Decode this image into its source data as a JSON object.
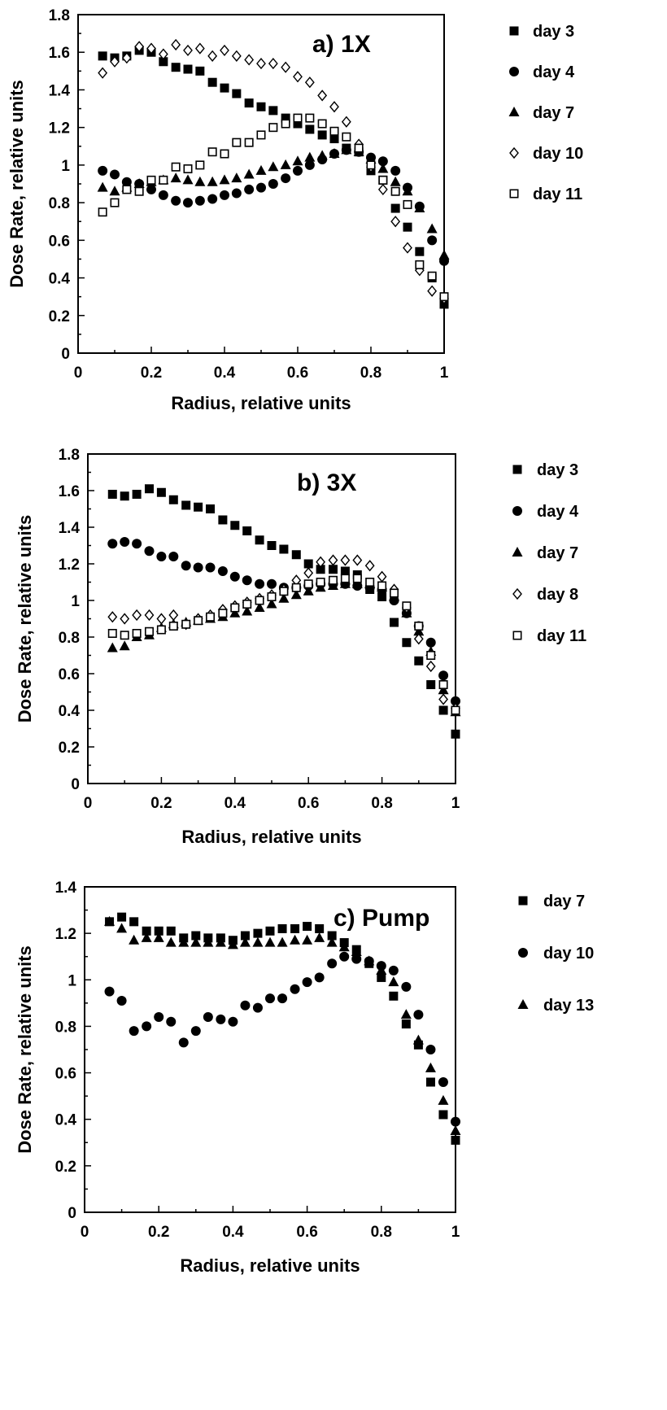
{
  "chart_data": [
    {
      "type": "scatter",
      "title": "a) 1X",
      "xlabel": "Radius, relative units",
      "ylabel": "Dose Rate, relative units",
      "xlim": [
        0,
        1
      ],
      "ylim": [
        0,
        1.8
      ],
      "xticks": [
        "0",
        "0.2",
        "0.4",
        "0.6",
        "0.8",
        "1"
      ],
      "yticks": [
        "0",
        "0.2",
        "0.4",
        "0.6",
        "0.8",
        "1",
        "1.2",
        "1.4",
        "1.6",
        "1.8"
      ],
      "legend_position": "right",
      "series": [
        {
          "name": "day 3",
          "marker": "square-filled",
          "x": [
            0.067,
            0.1,
            0.133,
            0.167,
            0.2,
            0.233,
            0.267,
            0.3,
            0.333,
            0.367,
            0.4,
            0.433,
            0.467,
            0.5,
            0.533,
            0.567,
            0.6,
            0.633,
            0.667,
            0.7,
            0.733,
            0.767,
            0.8,
            0.833,
            0.867,
            0.9,
            0.933,
            0.967,
            1.0
          ],
          "y": [
            1.58,
            1.57,
            1.58,
            1.61,
            1.6,
            1.55,
            1.52,
            1.51,
            1.5,
            1.44,
            1.41,
            1.38,
            1.33,
            1.31,
            1.29,
            1.25,
            1.22,
            1.19,
            1.16,
            1.14,
            1.09,
            1.07,
            0.97,
            0.92,
            0.77,
            0.67,
            0.54,
            0.4,
            0.26
          ]
        },
        {
          "name": "day 4",
          "marker": "circle-filled",
          "x": [
            0.067,
            0.1,
            0.133,
            0.167,
            0.2,
            0.233,
            0.267,
            0.3,
            0.333,
            0.367,
            0.4,
            0.433,
            0.467,
            0.5,
            0.533,
            0.567,
            0.6,
            0.633,
            0.667,
            0.7,
            0.733,
            0.767,
            0.8,
            0.833,
            0.867,
            0.9,
            0.933,
            0.967,
            1.0
          ],
          "y": [
            0.97,
            0.95,
            0.91,
            0.9,
            0.87,
            0.84,
            0.81,
            0.8,
            0.81,
            0.82,
            0.84,
            0.85,
            0.87,
            0.88,
            0.9,
            0.93,
            0.97,
            1.0,
            1.03,
            1.06,
            1.08,
            1.07,
            1.04,
            1.02,
            0.97,
            0.88,
            0.78,
            0.6,
            0.49
          ]
        },
        {
          "name": "day 7",
          "marker": "triangle-filled",
          "x": [
            0.067,
            0.1,
            0.133,
            0.167,
            0.2,
            0.233,
            0.267,
            0.3,
            0.333,
            0.367,
            0.4,
            0.433,
            0.467,
            0.5,
            0.533,
            0.567,
            0.6,
            0.633,
            0.667,
            0.7,
            0.733,
            0.767,
            0.8,
            0.833,
            0.867,
            0.9,
            0.933,
            0.967,
            1.0
          ],
          "y": [
            0.88,
            0.86,
            0.88,
            0.9,
            0.91,
            0.92,
            0.93,
            0.92,
            0.91,
            0.91,
            0.92,
            0.93,
            0.95,
            0.97,
            0.99,
            1.0,
            1.02,
            1.04,
            1.05,
            1.06,
            1.08,
            1.07,
            1.03,
            0.98,
            0.91,
            0.86,
            0.77,
            0.66,
            0.52
          ]
        },
        {
          "name": "day 10",
          "marker": "diamond-open",
          "x": [
            0.067,
            0.1,
            0.133,
            0.167,
            0.2,
            0.233,
            0.267,
            0.3,
            0.333,
            0.367,
            0.4,
            0.433,
            0.467,
            0.5,
            0.533,
            0.567,
            0.6,
            0.633,
            0.667,
            0.7,
            0.733,
            0.767,
            0.8,
            0.833,
            0.867,
            0.9,
            0.933,
            0.967,
            1.0
          ],
          "y": [
            1.49,
            1.55,
            1.57,
            1.63,
            1.62,
            1.59,
            1.64,
            1.61,
            1.62,
            1.58,
            1.61,
            1.58,
            1.56,
            1.54,
            1.54,
            1.52,
            1.47,
            1.44,
            1.37,
            1.31,
            1.23,
            1.11,
            0.99,
            0.87,
            0.7,
            0.56,
            0.44,
            0.33,
            0.29
          ]
        },
        {
          "name": "day 11",
          "marker": "square-open",
          "x": [
            0.067,
            0.1,
            0.133,
            0.167,
            0.2,
            0.233,
            0.267,
            0.3,
            0.333,
            0.367,
            0.4,
            0.433,
            0.467,
            0.5,
            0.533,
            0.567,
            0.6,
            0.633,
            0.667,
            0.7,
            0.733,
            0.767,
            0.8,
            0.833,
            0.867,
            0.9,
            0.933,
            0.967,
            1.0
          ],
          "y": [
            0.75,
            0.8,
            0.87,
            0.86,
            0.92,
            0.92,
            0.99,
            0.98,
            1.0,
            1.07,
            1.06,
            1.12,
            1.12,
            1.16,
            1.2,
            1.22,
            1.25,
            1.25,
            1.22,
            1.18,
            1.15,
            1.09,
            1.0,
            0.92,
            0.86,
            0.79,
            0.47,
            0.41,
            0.3
          ]
        }
      ]
    },
    {
      "type": "scatter",
      "title": "b) 3X",
      "xlabel": "Radius, relative units",
      "ylabel": "Dose Rate, relative units",
      "xlim": [
        0,
        1
      ],
      "ylim": [
        0,
        1.8
      ],
      "xticks": [
        "0",
        "0.2",
        "0.4",
        "0.6",
        "0.8",
        "1"
      ],
      "yticks": [
        "0",
        "0.2",
        "0.4",
        "0.6",
        "0.8",
        "1",
        "1.2",
        "1.4",
        "1.6",
        "1.8"
      ],
      "legend_position": "right",
      "series": [
        {
          "name": "day 3",
          "marker": "square-filled",
          "x": [
            0.067,
            0.1,
            0.133,
            0.167,
            0.2,
            0.233,
            0.267,
            0.3,
            0.333,
            0.367,
            0.4,
            0.433,
            0.467,
            0.5,
            0.533,
            0.567,
            0.6,
            0.633,
            0.667,
            0.7,
            0.733,
            0.767,
            0.8,
            0.833,
            0.867,
            0.9,
            0.933,
            0.967,
            1.0
          ],
          "y": [
            1.58,
            1.57,
            1.58,
            1.61,
            1.59,
            1.55,
            1.52,
            1.51,
            1.5,
            1.44,
            1.41,
            1.38,
            1.33,
            1.3,
            1.28,
            1.25,
            1.2,
            1.17,
            1.17,
            1.16,
            1.14,
            1.06,
            1.02,
            0.88,
            0.77,
            0.67,
            0.54,
            0.4,
            0.27
          ]
        },
        {
          "name": "day 4",
          "marker": "circle-filled",
          "x": [
            0.067,
            0.1,
            0.133,
            0.167,
            0.2,
            0.233,
            0.267,
            0.3,
            0.333,
            0.367,
            0.4,
            0.433,
            0.467,
            0.5,
            0.533,
            0.567,
            0.6,
            0.633,
            0.667,
            0.7,
            0.733,
            0.767,
            0.8,
            0.833,
            0.867,
            0.9,
            0.933,
            0.967,
            1.0
          ],
          "y": [
            1.31,
            1.32,
            1.31,
            1.27,
            1.24,
            1.24,
            1.19,
            1.18,
            1.18,
            1.16,
            1.13,
            1.11,
            1.09,
            1.09,
            1.07,
            1.07,
            1.08,
            1.09,
            1.09,
            1.09,
            1.08,
            1.07,
            1.06,
            1.0,
            0.93,
            0.86,
            0.77,
            0.59,
            0.45
          ]
        },
        {
          "name": "day 7",
          "marker": "triangle-filled",
          "x": [
            0.067,
            0.1,
            0.133,
            0.167,
            0.2,
            0.233,
            0.267,
            0.3,
            0.333,
            0.367,
            0.4,
            0.433,
            0.467,
            0.5,
            0.533,
            0.567,
            0.6,
            0.633,
            0.667,
            0.7,
            0.733,
            0.767,
            0.8,
            0.833,
            0.867,
            0.9,
            0.933,
            0.967,
            1.0
          ],
          "y": [
            0.74,
            0.75,
            0.8,
            0.81,
            0.85,
            0.87,
            0.88,
            0.89,
            0.9,
            0.91,
            0.93,
            0.94,
            0.96,
            0.98,
            1.01,
            1.03,
            1.05,
            1.07,
            1.08,
            1.09,
            1.09,
            1.09,
            1.07,
            1.02,
            0.93,
            0.83,
            0.72,
            0.51,
            0.39
          ]
        },
        {
          "name": "day 8",
          "marker": "diamond-open",
          "x": [
            0.067,
            0.1,
            0.133,
            0.167,
            0.2,
            0.233,
            0.267,
            0.3,
            0.333,
            0.367,
            0.4,
            0.433,
            0.467,
            0.5,
            0.533,
            0.567,
            0.6,
            0.633,
            0.667,
            0.7,
            0.733,
            0.767,
            0.8,
            0.833,
            0.867,
            0.9,
            0.933,
            0.967,
            1.0
          ],
          "y": [
            0.91,
            0.9,
            0.92,
            0.92,
            0.9,
            0.92,
            0.87,
            0.9,
            0.92,
            0.95,
            0.97,
            0.99,
            1.01,
            1.03,
            1.06,
            1.11,
            1.15,
            1.21,
            1.22,
            1.22,
            1.22,
            1.19,
            1.13,
            1.06,
            0.96,
            0.79,
            0.64,
            0.46,
            0.41
          ]
        },
        {
          "name": "day 11",
          "marker": "square-open",
          "x": [
            0.067,
            0.1,
            0.133,
            0.167,
            0.2,
            0.233,
            0.267,
            0.3,
            0.333,
            0.367,
            0.4,
            0.433,
            0.467,
            0.5,
            0.533,
            0.567,
            0.6,
            0.633,
            0.667,
            0.7,
            0.733,
            0.767,
            0.8,
            0.833,
            0.867,
            0.9,
            0.933,
            0.967,
            1.0
          ],
          "y": [
            0.82,
            0.81,
            0.82,
            0.83,
            0.84,
            0.86,
            0.87,
            0.89,
            0.91,
            0.93,
            0.96,
            0.98,
            1.0,
            1.02,
            1.05,
            1.07,
            1.09,
            1.1,
            1.11,
            1.12,
            1.12,
            1.1,
            1.08,
            1.04,
            0.97,
            0.86,
            0.7,
            0.54,
            0.4
          ]
        }
      ]
    },
    {
      "type": "scatter",
      "title": "c) Pump",
      "xlabel": "Radius, relative units",
      "ylabel": "Dose Rate, relative units",
      "xlim": [
        0,
        1
      ],
      "ylim": [
        0,
        1.4
      ],
      "xticks": [
        "0",
        "0.2",
        "0.4",
        "0.6",
        "0.8",
        "1"
      ],
      "yticks": [
        "0",
        "0.2",
        "0.4",
        "0.6",
        "0.8",
        "1",
        "1.2",
        "1.4"
      ],
      "legend_position": "right",
      "series": [
        {
          "name": "day 7",
          "marker": "square-filled",
          "x": [
            0.067,
            0.1,
            0.133,
            0.167,
            0.2,
            0.233,
            0.267,
            0.3,
            0.333,
            0.367,
            0.4,
            0.433,
            0.467,
            0.5,
            0.533,
            0.567,
            0.6,
            0.633,
            0.667,
            0.7,
            0.733,
            0.767,
            0.8,
            0.833,
            0.867,
            0.9,
            0.933,
            0.967,
            1.0
          ],
          "y": [
            1.25,
            1.27,
            1.25,
            1.21,
            1.21,
            1.21,
            1.18,
            1.19,
            1.18,
            1.18,
            1.17,
            1.19,
            1.2,
            1.21,
            1.22,
            1.22,
            1.23,
            1.22,
            1.19,
            1.16,
            1.13,
            1.07,
            1.01,
            0.93,
            0.81,
            0.72,
            0.56,
            0.42,
            0.31
          ]
        },
        {
          "name": "day 10",
          "marker": "circle-filled",
          "x": [
            0.067,
            0.1,
            0.133,
            0.167,
            0.2,
            0.233,
            0.267,
            0.3,
            0.333,
            0.367,
            0.4,
            0.433,
            0.467,
            0.5,
            0.533,
            0.567,
            0.6,
            0.633,
            0.667,
            0.7,
            0.733,
            0.767,
            0.8,
            0.833,
            0.867,
            0.9,
            0.933,
            0.967,
            1.0
          ],
          "y": [
            0.95,
            0.91,
            0.78,
            0.8,
            0.84,
            0.82,
            0.73,
            0.78,
            0.84,
            0.83,
            0.82,
            0.89,
            0.88,
            0.92,
            0.92,
            0.96,
            0.99,
            1.01,
            1.07,
            1.1,
            1.09,
            1.08,
            1.06,
            1.04,
            0.97,
            0.85,
            0.7,
            0.56,
            0.39
          ]
        },
        {
          "name": "day 13",
          "marker": "triangle-filled",
          "x": [
            0.067,
            0.1,
            0.133,
            0.167,
            0.2,
            0.233,
            0.267,
            0.3,
            0.333,
            0.367,
            0.4,
            0.433,
            0.467,
            0.5,
            0.533,
            0.567,
            0.6,
            0.633,
            0.667,
            0.7,
            0.733,
            0.767,
            0.8,
            0.833,
            0.867,
            0.9,
            0.933,
            0.967,
            1.0
          ],
          "y": [
            1.25,
            1.22,
            1.17,
            1.18,
            1.18,
            1.16,
            1.16,
            1.16,
            1.16,
            1.16,
            1.15,
            1.16,
            1.16,
            1.16,
            1.16,
            1.17,
            1.17,
            1.18,
            1.16,
            1.14,
            1.12,
            1.08,
            1.04,
            0.99,
            0.85,
            0.74,
            0.62,
            0.48,
            0.35
          ]
        }
      ]
    }
  ]
}
